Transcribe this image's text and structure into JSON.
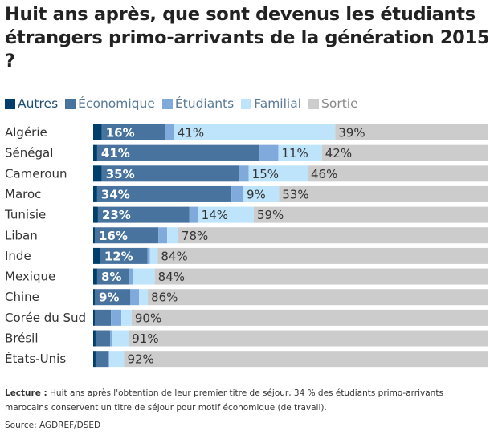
{
  "chart_data": {
    "type": "bar",
    "orientation": "horizontal",
    "stacked": true,
    "title": "Huit ans après, que sont devenus les étudiants étrangers primo-arrivants de la génération 2015 ?",
    "categories": [
      "Algérie",
      "Sénégal",
      "Cameroun",
      "Maroc",
      "Tunisie",
      "Liban",
      "Inde",
      "Mexique",
      "Chine",
      "Corée du Sud",
      "Brésil",
      "États-Unis"
    ],
    "series": [
      {
        "name": "Autres",
        "color": "#003f6b",
        "values": [
          2.2,
          1,
          2.2,
          1,
          1.2,
          0.4,
          1.8,
          1,
          0.4,
          0.4,
          0.6,
          0.6
        ],
        "labels": [
          null,
          null,
          null,
          null,
          null,
          null,
          null,
          null,
          null,
          null,
          null,
          null
        ]
      },
      {
        "name": "Économique",
        "color": "#48739f",
        "values": [
          16,
          41,
          35,
          34,
          23,
          16,
          12,
          8,
          9,
          4.1,
          3.7,
          3.3
        ],
        "labels": [
          "16%",
          "41%",
          "35%",
          "34%",
          "23%",
          "16%",
          "12%",
          "8%",
          "9%",
          null,
          null,
          null
        ]
      },
      {
        "name": "Étudiants",
        "color": "#80aadb",
        "values": [
          2.4,
          4.7,
          2.4,
          3,
          2.2,
          2.2,
          0.6,
          1,
          2.2,
          2.6,
          0.6,
          0.2
        ],
        "labels": [
          null,
          null,
          null,
          null,
          null,
          null,
          null,
          null,
          null,
          null,
          null,
          null
        ]
      },
      {
        "name": "Familial",
        "color": "#bee4fb",
        "values": [
          41,
          11,
          15,
          9,
          14,
          2.8,
          2,
          5.5,
          2.2,
          2.6,
          4.1,
          3.7
        ],
        "labels": [
          "41%",
          "11%",
          "15%",
          "9%",
          "14%",
          null,
          null,
          null,
          null,
          null,
          null,
          null
        ]
      },
      {
        "name": "Sortie",
        "color": "#cccccc",
        "values": [
          39,
          42,
          46,
          53,
          59,
          78,
          84,
          84,
          86,
          90,
          91,
          92
        ],
        "labels": [
          "39%",
          "42%",
          "46%",
          "53%",
          "59%",
          "78%",
          "84%",
          "84%",
          "86%",
          "90%",
          "91%",
          "92%"
        ]
      }
    ],
    "xlim": [
      0,
      100
    ],
    "legend_position": "top-left",
    "legend_text_colors": [
      "#1f4e74",
      "#5a7a99",
      "#5a7a99",
      "#5a7a99",
      "#888888"
    ]
  },
  "note": {
    "lead": "Lecture :",
    "text": " Huit ans après l'obtention de leur premier titre de séjour, 34 % des étudiants primo-arrivants marocains conservent un titre de séjour pour motif économique (de travail)."
  },
  "source": "Source: AGDREF/DSED"
}
